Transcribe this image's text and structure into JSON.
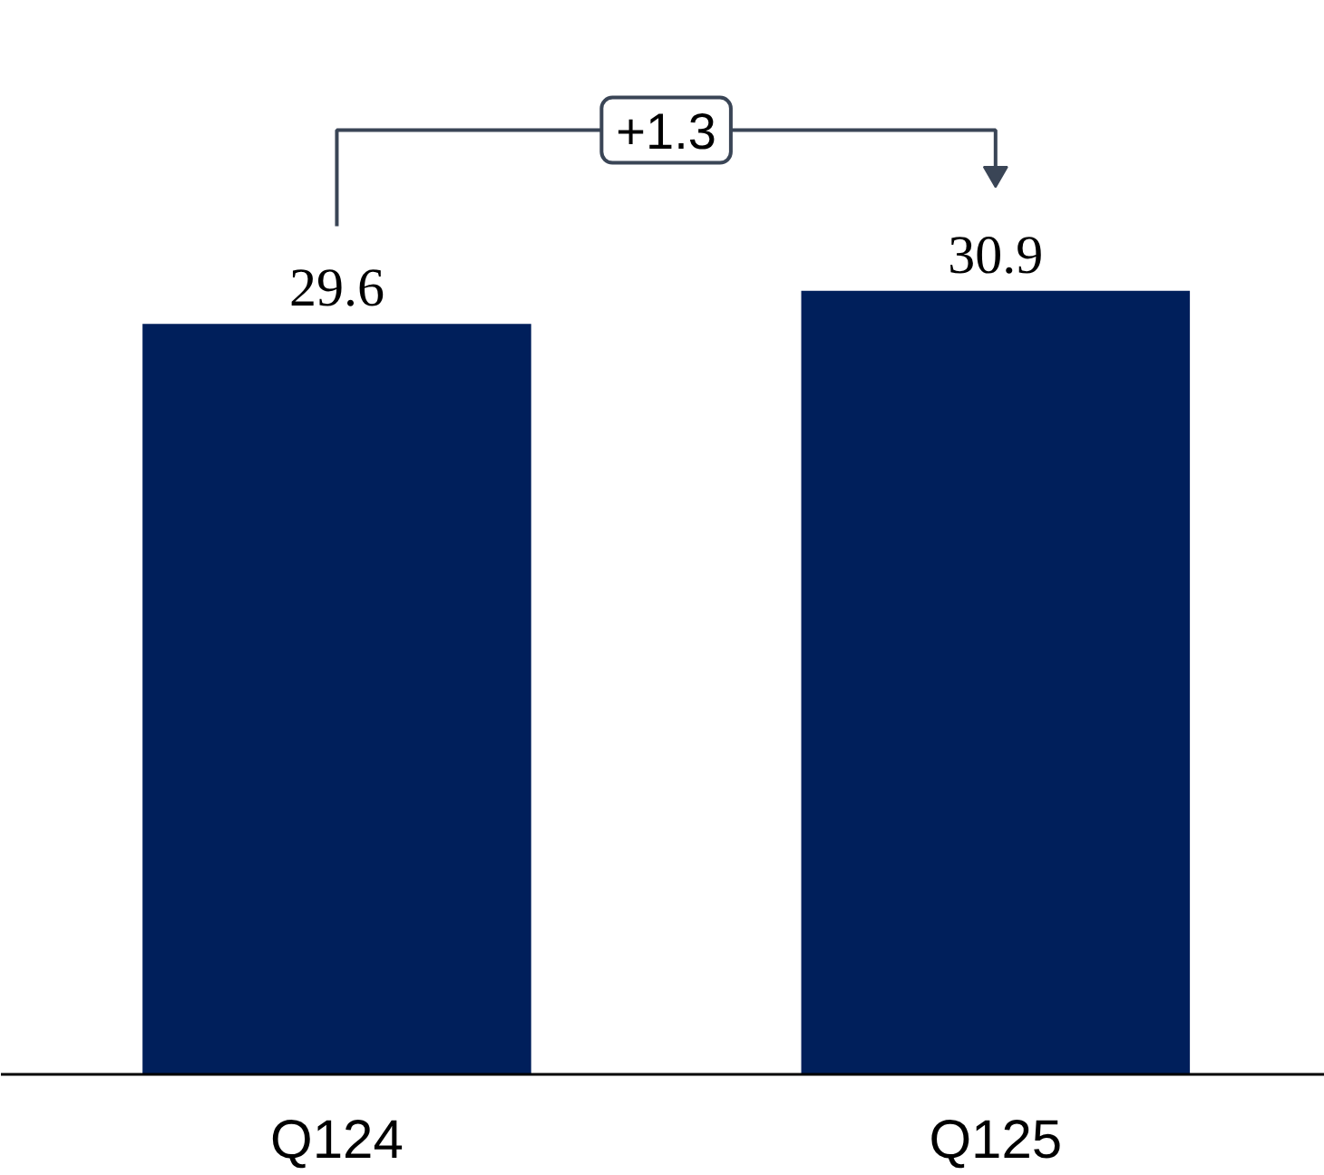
{
  "chart_data": {
    "type": "bar",
    "categories": [
      "Q124",
      "Q125"
    ],
    "values": [
      29.6,
      30.9
    ],
    "color": "#001f5b",
    "data_labels": true,
    "grid": false,
    "annotations": [
      "+1.3"
    ]
  }
}
